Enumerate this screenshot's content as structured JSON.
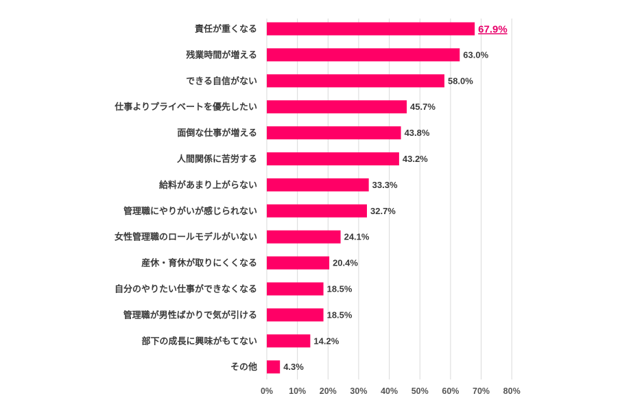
{
  "chart_data": {
    "type": "bar",
    "orientation": "horizontal",
    "categories": [
      "責任が重くなる",
      "残業時間が増える",
      "できる自信がない",
      "仕事よりプライベートを優先したい",
      "面倒な仕事が増える",
      "人間関係に苦労する",
      "給料があまり上がらない",
      "管理職にやりがいが感じられない",
      "女性管理職のロールモデルがいない",
      "産休・育休が取りにくくなる",
      "自分のやりたい仕事ができなくなる",
      "管理職が男性ばかりで気が引ける",
      "部下の成長に興味がもてない",
      "その他"
    ],
    "values": [
      67.9,
      63.0,
      58.0,
      45.7,
      43.8,
      43.2,
      33.3,
      32.7,
      24.1,
      20.4,
      18.5,
      18.5,
      14.2,
      4.3
    ],
    "value_labels": [
      "67.9%",
      "63.0%",
      "58.0%",
      "45.7%",
      "43.8%",
      "43.2%",
      "33.3%",
      "32.7%",
      "24.1%",
      "20.4%",
      "18.5%",
      "18.5%",
      "14.2%",
      "4.3%"
    ],
    "highlight_index": 0,
    "xlim": [
      0,
      80
    ],
    "xticks": [
      0,
      10,
      20,
      30,
      40,
      50,
      60,
      70,
      80
    ],
    "xtick_labels": [
      "0%",
      "10%",
      "20%",
      "30%",
      "40%",
      "50%",
      "60%",
      "70%",
      "80%"
    ],
    "grid": true,
    "bar_color": "#ff0066",
    "highlight_label_color": "#e8006a"
  }
}
